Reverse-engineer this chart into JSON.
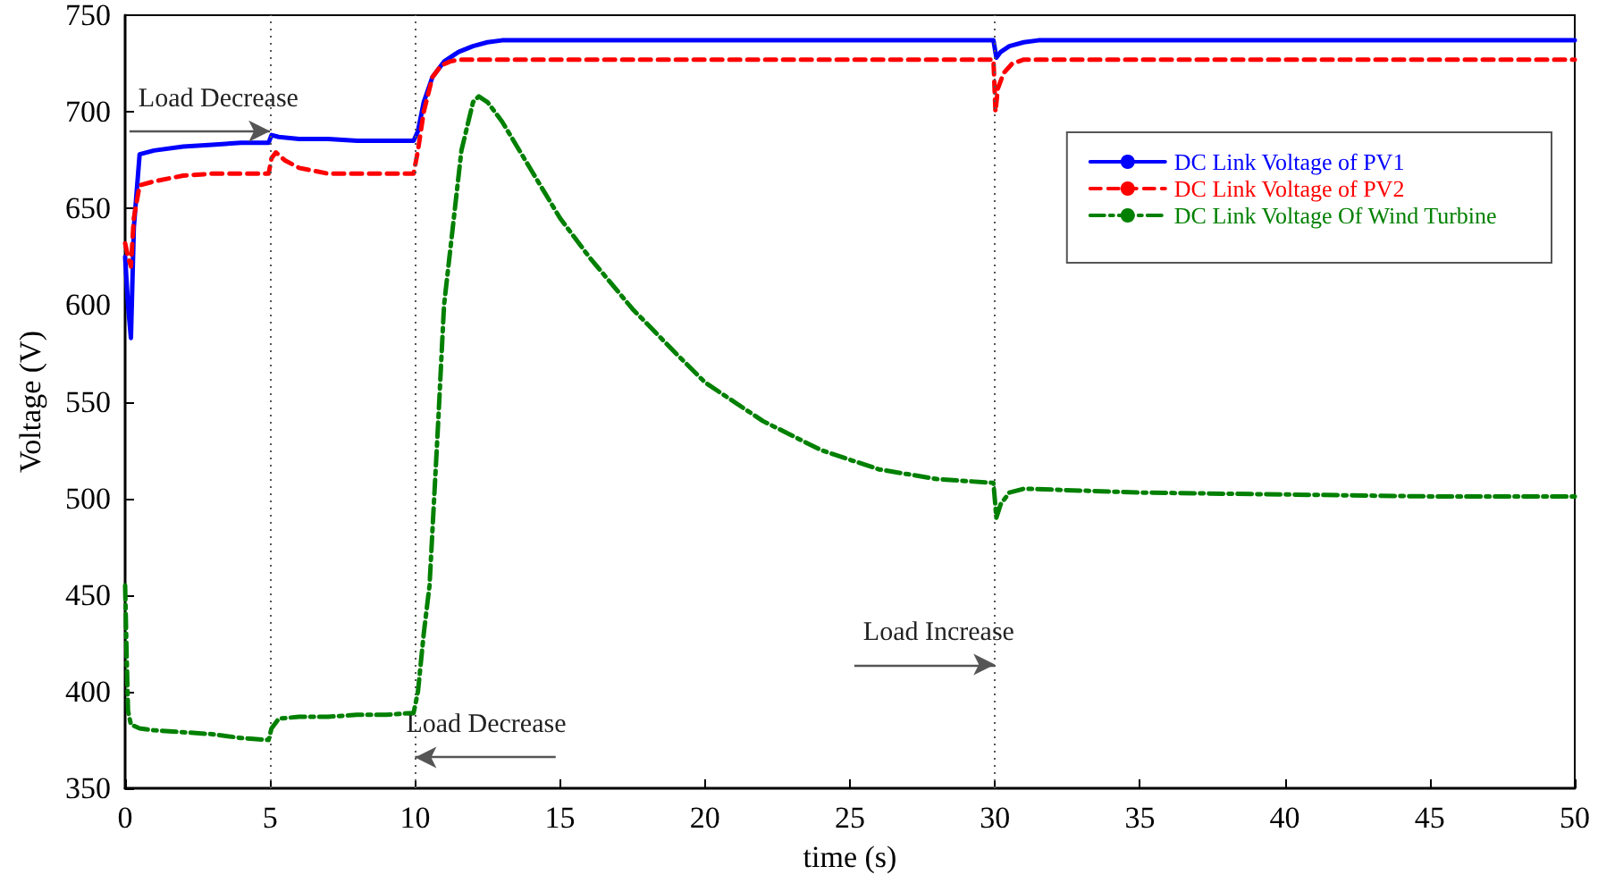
{
  "chart_data": {
    "type": "line",
    "xlabel": "time (s)",
    "ylabel": "Voltage (V)",
    "xlim": [
      0,
      50
    ],
    "xticks": [
      0,
      5,
      10,
      15,
      20,
      25,
      30,
      35,
      40,
      45,
      50
    ],
    "ylim": [
      350,
      750
    ],
    "yticks": [
      350,
      400,
      450,
      500,
      550,
      600,
      650,
      700,
      750
    ],
    "grid": false,
    "legend": "top right",
    "marker": "none",
    "series": [
      {
        "name": "DC Link Voltage of PV1",
        "color": "#0000ff",
        "line_style": "solid",
        "x": [
          0,
          0.1,
          0.2,
          0.3,
          0.5,
          1,
          2,
          3,
          4,
          4.95,
          5.05,
          5.3,
          6,
          7,
          8,
          9,
          9.95,
          10.1,
          10.3,
          10.6,
          11,
          11.5,
          12,
          12.5,
          13,
          14,
          20,
          25,
          29.95,
          30.05,
          30.2,
          30.5,
          31,
          31.5,
          32,
          35,
          40,
          45,
          50
        ],
        "values": [
          625,
          600,
          583,
          640,
          678,
          680,
          682,
          683,
          684,
          684,
          688,
          687,
          686,
          686,
          685,
          685,
          685,
          690,
          705,
          718,
          726,
          731,
          734,
          736,
          737,
          737,
          737,
          737,
          737,
          728,
          731,
          734,
          736,
          737,
          737,
          737,
          737,
          737,
          737
        ]
      },
      {
        "name": "DC Link Voltage of PV2",
        "color": "#ff0000",
        "line_style": "dashed",
        "x": [
          0,
          0.1,
          0.2,
          0.3,
          0.5,
          1,
          2,
          3,
          4,
          4.95,
          5.05,
          5.2,
          5.5,
          6,
          7,
          8,
          9,
          9.95,
          10.1,
          10.3,
          10.6,
          10.9,
          11.2,
          11.5,
          12,
          15,
          20,
          25,
          29.95,
          30.02,
          30.1,
          30.3,
          30.6,
          31,
          32,
          35,
          40,
          45,
          50
        ],
        "values": [
          632,
          625,
          620,
          645,
          662,
          664,
          667,
          668,
          668,
          668,
          676,
          679,
          675,
          671,
          668,
          668,
          668,
          668,
          680,
          700,
          718,
          724,
          726,
          727,
          727,
          727,
          727,
          727,
          727,
          700,
          712,
          720,
          725,
          727,
          727,
          727,
          727,
          727,
          727
        ]
      },
      {
        "name": "DC Link Voltage Of Wind Turbine",
        "color": "#008000",
        "line_style": "dashdot",
        "x": [
          0,
          0.05,
          0.1,
          0.2,
          0.5,
          1,
          2,
          3,
          4,
          4.95,
          5.05,
          5.3,
          6,
          7,
          8,
          9,
          9.95,
          10.1,
          10.3,
          10.5,
          10.8,
          11,
          11.3,
          11.6,
          12,
          12.2,
          12.5,
          13,
          14,
          15,
          16,
          17.5,
          19,
          20,
          22,
          24,
          26,
          28,
          29.95,
          30.05,
          30.2,
          30.5,
          31,
          33,
          35,
          40,
          45,
          50
        ],
        "values": [
          455,
          420,
          390,
          383,
          381,
          380,
          379,
          378,
          376,
          375,
          381,
          386,
          387,
          387,
          388,
          388,
          389,
          400,
          430,
          455,
          540,
          600,
          640,
          680,
          705,
          708,
          705,
          695,
          670,
          645,
          625,
          598,
          575,
          560,
          540,
          525,
          515,
          510,
          508,
          490,
          497,
          503,
          505,
          504,
          503,
          502,
          501,
          501
        ]
      }
    ],
    "ref_lines": [
      {
        "axis": "x",
        "value": 5,
        "label": "Load Decrease",
        "color": "#555555",
        "line_style": "dotted"
      },
      {
        "axis": "x",
        "value": 10,
        "label": "Load Decrease",
        "color": "#555555",
        "line_style": "dotted"
      },
      {
        "axis": "x",
        "value": 30,
        "label": "Load Increase",
        "color": "#555555",
        "line_style": "dotted"
      }
    ]
  }
}
